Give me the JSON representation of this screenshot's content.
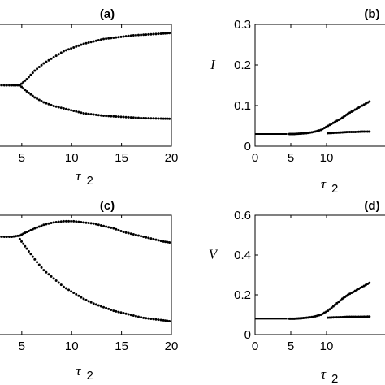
{
  "chart_data": [
    {
      "id": "a",
      "type": "scatter",
      "title": "(a)",
      "xlabel": "τ",
      "xlabel_sub": "2",
      "ylabel": "",
      "xlim": [
        2.0,
        20
      ],
      "ylim": [
        0,
        1
      ],
      "xticks": [
        5,
        10,
        15,
        20
      ],
      "xtick_labels": [
        "5",
        "10",
        "15",
        "20"
      ],
      "yticks": [],
      "ytick_labels": [],
      "series": [
        {
          "x": [
            2.0,
            3.0,
            4.0,
            4.8,
            5.5,
            6.3,
            7.2,
            8.2,
            9.2,
            10.2,
            11.2,
            12.2,
            13.2,
            14.2,
            15.2,
            16.2,
            17.2,
            18.2,
            19.2,
            20.0
          ],
          "y": [
            0.5,
            0.5,
            0.5,
            0.5,
            0.55,
            0.62,
            0.68,
            0.73,
            0.78,
            0.81,
            0.84,
            0.86,
            0.88,
            0.89,
            0.9,
            0.91,
            0.915,
            0.92,
            0.925,
            0.93
          ]
        },
        {
          "x": [
            4.8,
            5.5,
            6.3,
            7.2,
            8.2,
            9.2,
            10.2,
            11.2,
            12.2,
            13.2,
            14.2,
            15.2,
            16.2,
            17.2,
            18.2,
            19.2,
            20.0
          ],
          "y": [
            0.5,
            0.45,
            0.4,
            0.36,
            0.33,
            0.31,
            0.29,
            0.27,
            0.26,
            0.25,
            0.245,
            0.24,
            0.235,
            0.23,
            0.228,
            0.226,
            0.225
          ]
        }
      ]
    },
    {
      "id": "b",
      "type": "scatter",
      "title": "(b)",
      "xlabel": "τ",
      "xlabel_sub": "2",
      "ylabel": "I",
      "xlim": [
        0,
        20
      ],
      "ylim": [
        0,
        0.3
      ],
      "xticks": [
        0,
        5,
        10
      ],
      "xtick_labels": [
        "0",
        "5",
        "10"
      ],
      "yticks": [
        0,
        0.1,
        0.2,
        0.3
      ],
      "ytick_labels": [
        "0",
        "0.1",
        "0.2",
        "0.3"
      ],
      "solid_segment": {
        "x": [
          0,
          4.5
        ],
        "y": 0.03
      },
      "series": [
        {
          "x": [
            4.8,
            5.5,
            6.3,
            7.2,
            8.2,
            9.2,
            10.2,
            11.2,
            12.2,
            13.0,
            14.0,
            15.0,
            16.0
          ],
          "y": [
            0.03,
            0.03,
            0.031,
            0.032,
            0.035,
            0.04,
            0.05,
            0.06,
            0.07,
            0.08,
            0.09,
            0.1,
            0.11
          ]
        },
        {
          "x": [
            10.2,
            11.2,
            12.2,
            13.0,
            14.0,
            15.0,
            16.0
          ],
          "y": [
            0.032,
            0.033,
            0.034,
            0.035,
            0.035,
            0.036,
            0.036
          ]
        }
      ]
    },
    {
      "id": "c",
      "type": "scatter",
      "title": "(c)",
      "xlabel": "τ",
      "xlabel_sub": "2",
      "ylabel": "",
      "xlim": [
        2.0,
        20
      ],
      "ylim": [
        0,
        1
      ],
      "xticks": [
        5,
        10,
        15,
        20
      ],
      "xtick_labels": [
        "5",
        "10",
        "15",
        "20"
      ],
      "yticks": [],
      "ytick_labels": [],
      "series": [
        {
          "x": [
            2.0,
            3.0,
            4.0,
            4.8,
            5.5,
            6.3,
            7.2,
            8.2,
            9.2,
            10.2,
            11.2,
            12.2,
            13.2,
            14.2,
            15.2,
            16.2,
            17.2,
            18.2,
            19.2,
            20.0
          ],
          "y": [
            0.82,
            0.82,
            0.82,
            0.83,
            0.86,
            0.89,
            0.92,
            0.94,
            0.95,
            0.95,
            0.94,
            0.93,
            0.91,
            0.89,
            0.86,
            0.84,
            0.82,
            0.8,
            0.78,
            0.77
          ]
        },
        {
          "x": [
            4.8,
            5.5,
            6.3,
            7.2,
            8.2,
            9.2,
            10.2,
            11.2,
            12.2,
            13.2,
            14.2,
            15.2,
            16.2,
            17.2,
            18.2,
            19.2,
            20.0
          ],
          "y": [
            0.8,
            0.72,
            0.63,
            0.54,
            0.47,
            0.4,
            0.35,
            0.3,
            0.26,
            0.23,
            0.2,
            0.18,
            0.16,
            0.14,
            0.13,
            0.12,
            0.11
          ]
        }
      ]
    },
    {
      "id": "d",
      "type": "scatter",
      "title": "(d)",
      "xlabel": "τ",
      "xlabel_sub": "2",
      "ylabel": "V",
      "xlim": [
        0,
        20
      ],
      "ylim": [
        0,
        0.6
      ],
      "xticks": [
        0,
        5,
        10
      ],
      "xtick_labels": [
        "0",
        "5",
        "10"
      ],
      "yticks": [
        0,
        0.2,
        0.4,
        0.6
      ],
      "ytick_labels": [
        "0",
        "0.2",
        "0.4",
        "0.6"
      ],
      "solid_segment": {
        "x": [
          0,
          4.5
        ],
        "y": 0.08
      },
      "series": [
        {
          "x": [
            4.8,
            5.5,
            6.3,
            7.2,
            8.2,
            9.2,
            10.2,
            11.2,
            12.2,
            13.0,
            14.0,
            15.0,
            16.0
          ],
          "y": [
            0.08,
            0.08,
            0.082,
            0.085,
            0.09,
            0.1,
            0.12,
            0.15,
            0.18,
            0.2,
            0.22,
            0.24,
            0.26
          ]
        },
        {
          "x": [
            10.2,
            11.2,
            12.2,
            13.0,
            14.0,
            15.0,
            16.0
          ],
          "y": [
            0.085,
            0.087,
            0.088,
            0.09,
            0.09,
            0.09,
            0.091
          ]
        }
      ]
    }
  ]
}
